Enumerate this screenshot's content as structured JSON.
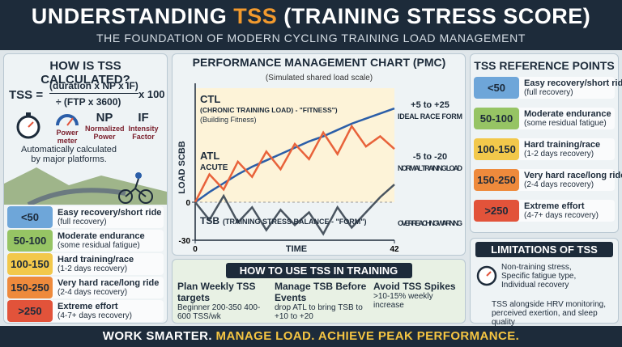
{
  "header": {
    "title_lead": "UNDERSTANDING",
    "title_highlight": "TSS",
    "title_tail": "(TRAINING STRESS SCORE)",
    "subtitle": "THE FOUNDATION OF MODERN CYCLING TRAINING LOAD MANAGEMENT"
  },
  "calculation": {
    "title": "HOW IS TSS CALCULATED?",
    "formula_lhs": "TSS =",
    "numerator": "(duration x NP x IF)",
    "denominator": "÷ (FTP x 3600)",
    "multiplier": "x 100",
    "factors": [
      {
        "label": "Power meter"
      },
      {
        "abbr": "NP",
        "label": "Normalized Power"
      },
      {
        "abbr": "IF",
        "label": "Intensity Factor"
      }
    ],
    "note": "Automatically calculated by major platforms.",
    "ranges": [
      {
        "range": "<50",
        "title": "Easy recovery/short ride",
        "detail": "(full recovery)",
        "color": "#6ea6d9"
      },
      {
        "range": "50-100",
        "title": "Moderate endurance",
        "detail": "(some residual fatigue)",
        "color": "#96c464"
      },
      {
        "range": "100-150",
        "title": "Hard training/race",
        "detail": "(1-2 days recovery)",
        "color": "#f2c84b"
      },
      {
        "range": "150-250",
        "title": "Very hard race/long ride",
        "detail": "(2-4 days recovery)",
        "color": "#ee8a3c"
      },
      {
        "range": ">250",
        "title": "Extreme effort",
        "detail": "(4-7+ days recovery)",
        "color": "#e2533a"
      }
    ]
  },
  "chart_data": {
    "type": "line",
    "title": "PERFORMANCE MANAGEMENT CHART (PMC)",
    "subtitle": "(Simulated shared load scale)",
    "x_label": "TIME",
    "y_label": "LOAD SCBB",
    "x": [
      0,
      3,
      6,
      9,
      12,
      15,
      18,
      21,
      24,
      27,
      30,
      33,
      36,
      39,
      42
    ],
    "xlim": [
      0,
      42
    ],
    "xticks": [
      0,
      42
    ],
    "ylim": [
      -30,
      90
    ],
    "yticks": [
      -30,
      0
    ],
    "series": [
      {
        "name": "CTL",
        "color": "#2b5ea8",
        "values": [
          0,
          8,
          15,
          22,
          28,
          33,
          38,
          43,
          48,
          52,
          57,
          62,
          66,
          70,
          74
        ]
      },
      {
        "name": "ATL",
        "color": "#e8623a",
        "values": [
          0,
          22,
          10,
          32,
          20,
          40,
          26,
          46,
          34,
          55,
          38,
          60,
          44,
          52,
          42
        ]
      },
      {
        "name": "TSB",
        "color": "#4a5560",
        "values": [
          0,
          -14,
          5,
          -16,
          -4,
          -22,
          -6,
          -18,
          -8,
          -25,
          -4,
          -20,
          -8,
          4,
          14
        ]
      }
    ],
    "annotations": {
      "ctl_desc": "(CHRONIC TRAINING LOAD) - \"FITNESS\")",
      "ctl_note": "(Building Fitness)",
      "atl_desc": "ACUTE",
      "tsb_desc": "(TRAINING STRESS BALANCE - \"FORM\")",
      "zone_race_range": "+5 to +25",
      "zone_race_label": "IDEAL RACE FORM",
      "zone_train_range": "-5 to -20",
      "zone_train_label": "NORMAL TRAINING LOAD",
      "warning": "OVERREACHING WARNING"
    }
  },
  "usage": {
    "title": "HOW TO USE TSS IN TRAINING",
    "items": [
      {
        "title": "Plan Weekly TSS targets",
        "detail": "Beginner 200-350 400-600 TSS/wk"
      },
      {
        "title": "Manage TSB Before Events",
        "detail": "drop ATL to bring TSB to +10 to +20"
      },
      {
        "title": "Avoid TSS Spikes",
        "detail": ">10-15% weekly increase"
      }
    ]
  },
  "reference": {
    "title": "TSS REFERENCE POINTS",
    "ranges": [
      {
        "range": "<50",
        "title": "Easy recovery/short ride",
        "detail": "(full recovery)",
        "color": "#6ea6d9"
      },
      {
        "range": "50-100",
        "title": "Moderate endurance",
        "detail": "(some residual fatigue)",
        "color": "#96c464"
      },
      {
        "range": "100-150",
        "title": "Hard training/race",
        "detail": "(1-2 days recovery)",
        "color": "#f2c84b"
      },
      {
        "range": "150-250",
        "title": "Very hard race/long ride",
        "detail": "(2-4 days recovery)",
        "color": "#ee8a3c"
      },
      {
        "range": ">250",
        "title": "Extreme effort",
        "detail": "(4-7+ days recovery)",
        "color": "#e2533a"
      }
    ]
  },
  "limitations": {
    "title": "LIMITATIONS OF TSS",
    "point": "Non-training stress, Specific fatigue type, Individual recovery",
    "advice": "TSS alongside HRV monitoring, perceived exertion, and sleep quality"
  },
  "footer": {
    "lead": "WORK SMARTER.",
    "highlight": "MANAGE LOAD. ACHIEVE PEAK PERFORMANCE."
  }
}
